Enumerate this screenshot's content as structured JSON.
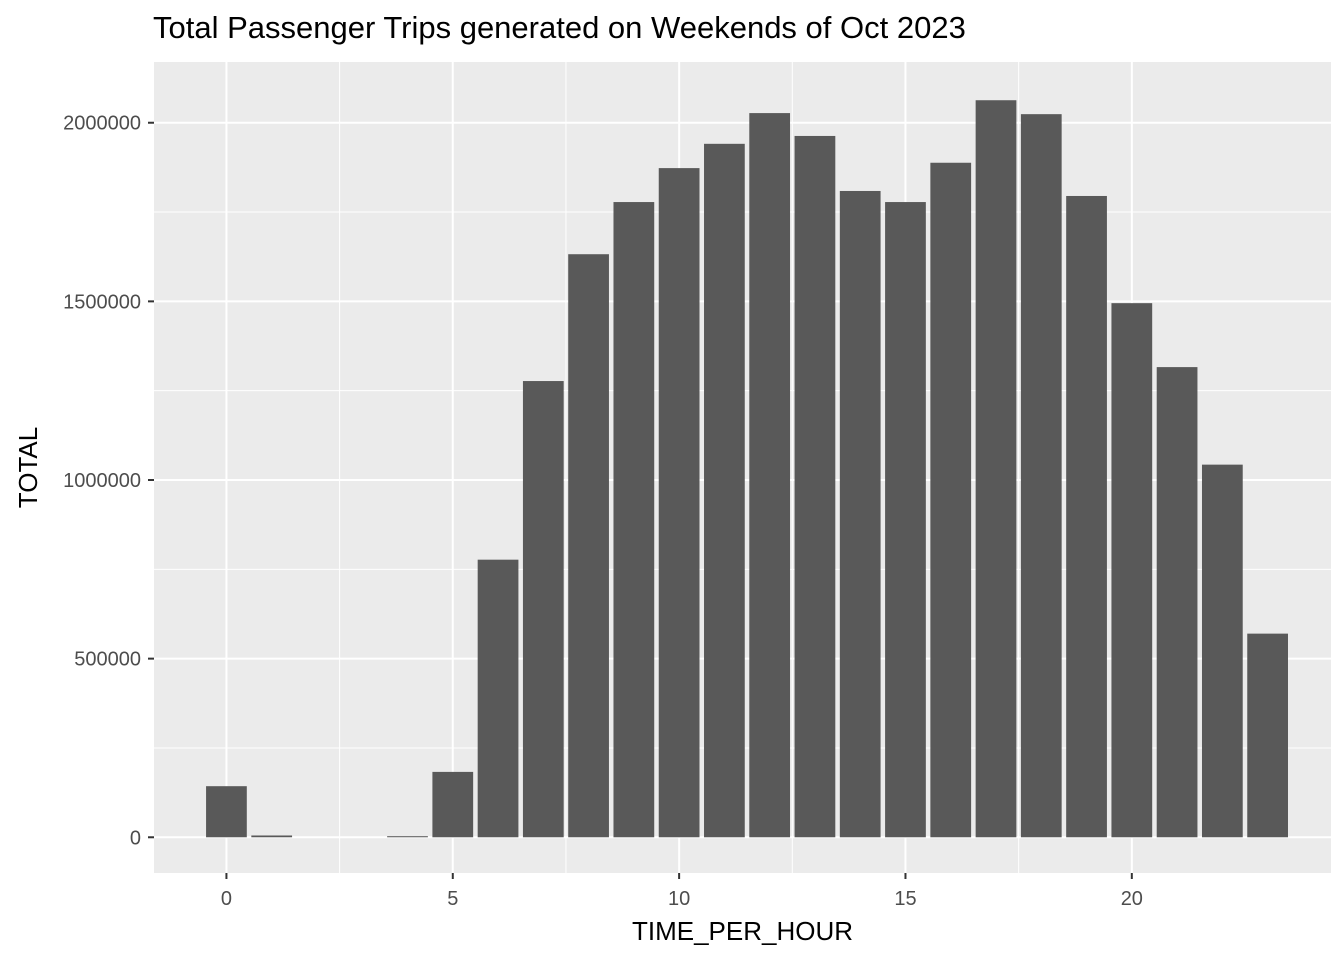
{
  "chart_data": {
    "type": "bar",
    "title": "Total Passenger Trips generated on Weekends of Oct 2023",
    "xlabel": "TIME_PER_HOUR",
    "ylabel": "TOTAL",
    "xlim": [
      -1.6,
      24.4
    ],
    "ylim": [
      -100000,
      2170000
    ],
    "x_ticks": [
      0,
      5,
      10,
      15,
      20
    ],
    "x_tick_labels": [
      "0",
      "5",
      "10",
      "15",
      "20"
    ],
    "y_ticks": [
      0,
      500000,
      1000000,
      1500000,
      2000000
    ],
    "y_tick_labels": [
      "0",
      "500000",
      "1000000",
      "1500000",
      "2000000"
    ],
    "x": [
      0,
      1,
      4,
      5,
      6,
      7,
      8,
      9,
      10,
      11,
      12,
      13,
      14,
      15,
      16,
      17,
      18,
      19,
      20,
      21,
      22,
      23
    ],
    "values": [
      143000,
      5000,
      3000,
      183000,
      777000,
      1277000,
      1632000,
      1778000,
      1873000,
      1941000,
      2027000,
      1963000,
      1809000,
      1778000,
      1888000,
      2063000,
      2024000,
      1795000,
      1495000,
      1316000,
      1043000,
      570000
    ],
    "grid": true,
    "legend": "none",
    "colors": {
      "panel": "#ebebeb",
      "grid": "#ffffff",
      "bar": "#595959"
    }
  }
}
